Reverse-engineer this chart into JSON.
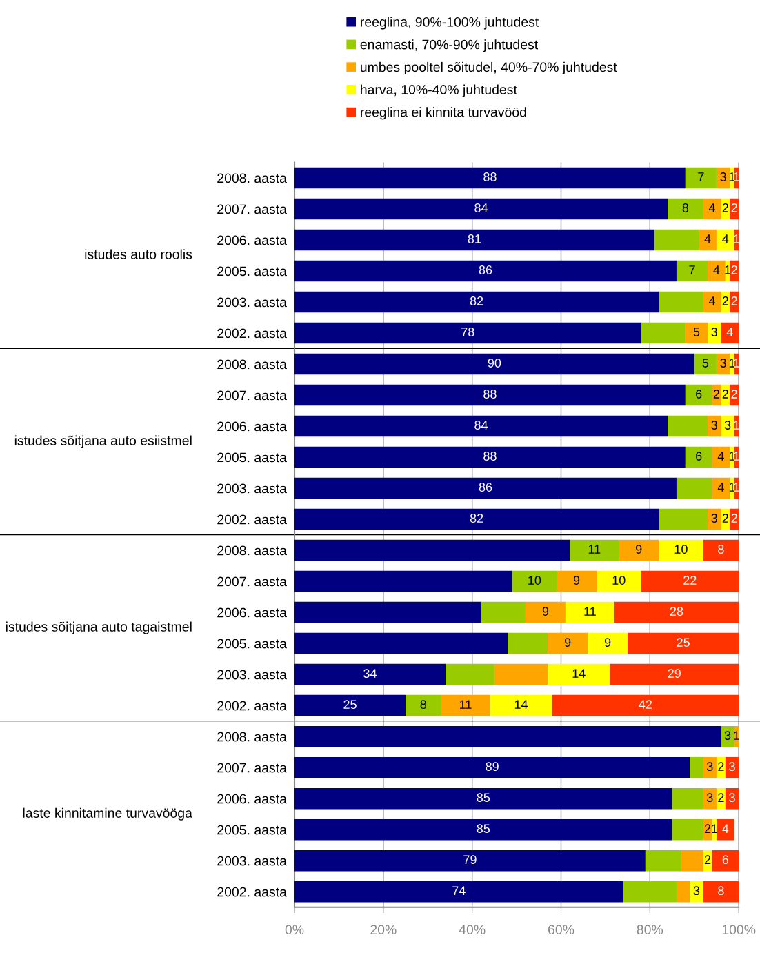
{
  "chart_data": {
    "type": "bar",
    "orientation": "horizontal",
    "stacked": true,
    "legend": "top",
    "grid": "x",
    "categories": [
      "2008. aasta",
      "2007. aasta",
      "2006. aasta",
      "2005. aasta",
      "2003. aasta",
      "2002. aasta",
      "2008. aasta",
      "2007. aasta",
      "2006. aasta",
      "2005. aasta",
      "2003. aasta",
      "2002. aasta",
      "2008. aasta",
      "2007. aasta",
      "2006. aasta",
      "2005. aasta",
      "2003. aasta",
      "2002. aasta",
      "2008. aasta",
      "2007. aasta",
      "2006. aasta",
      "2005. aasta",
      "2003. aasta",
      "2002. aasta"
    ],
    "annotations": [
      "istudes auto roolis",
      "istudes sõitjana auto esiistmel",
      "istudes sõitjana auto tagaistmel",
      "laste kinnitamine turvavööga"
    ],
    "xlim": [
      0,
      100
    ],
    "xticks": [
      {
        "value": 0,
        "label": "0%"
      },
      {
        "value": 20,
        "label": "20%"
      },
      {
        "value": 40,
        "label": "40%"
      },
      {
        "value": 60,
        "label": "60%"
      },
      {
        "value": 80,
        "label": "80%"
      },
      {
        "value": 100,
        "label": "100%"
      }
    ],
    "series": [
      {
        "name": "reeglina, 90%-100% juhtudest",
        "color": "#000080",
        "values": [
          88,
          84,
          81,
          86,
          82,
          78,
          90,
          88,
          84,
          88,
          86,
          82,
          62,
          49,
          42,
          48,
          34,
          25,
          96,
          89,
          85,
          85,
          79,
          74
        ],
        "value_labels": [
          "88",
          "84",
          "81",
          "86",
          "82",
          "78",
          "90",
          "88",
          "84",
          "88",
          "86",
          "82",
          null,
          null,
          null,
          null,
          "34",
          "25",
          null,
          "89",
          "85",
          "85",
          "79",
          "74"
        ]
      },
      {
        "name": "enamasti, 70%-90% juhtudest",
        "color": "#99cc00",
        "values": [
          7,
          8,
          10,
          7,
          10,
          10,
          5,
          6,
          9,
          6,
          8,
          11,
          11,
          10,
          10,
          9,
          11,
          8,
          3,
          3,
          7,
          7,
          8,
          12
        ],
        "value_labels": [
          "7",
          "8",
          null,
          "7",
          null,
          null,
          "5",
          "6",
          null,
          "6",
          null,
          null,
          "11",
          "10",
          null,
          null,
          null,
          "8",
          "3",
          null,
          null,
          null,
          null,
          null
        ]
      },
      {
        "name": "umbes pooltel sõitudel, 40%-70% juhtudest",
        "color": "#ffa500",
        "values": [
          3,
          4,
          4,
          4,
          4,
          5,
          3,
          2,
          3,
          4,
          4,
          3,
          9,
          9,
          9,
          9,
          12,
          11,
          1,
          3,
          3,
          2,
          5,
          3
        ],
        "value_labels": [
          "3",
          "4",
          "4",
          "4",
          "4",
          "5",
          "3",
          "2",
          "3",
          "4",
          "4",
          "3",
          "9",
          "9",
          "9",
          "9",
          null,
          "11",
          "1",
          "3",
          "3",
          "2",
          null,
          null
        ]
      },
      {
        "name": "harva, 10%-40% juhtudest",
        "color": "#ffff00",
        "values": [
          1,
          2,
          4,
          1,
          2,
          3,
          1,
          2,
          3,
          1,
          1,
          2,
          10,
          10,
          11,
          9,
          14,
          14,
          null,
          2,
          2,
          1,
          2,
          3
        ],
        "value_labels": [
          "1",
          "2",
          "4",
          "1",
          "2",
          "3",
          "1",
          "2",
          "3",
          "1",
          "1",
          "2",
          "10",
          "10",
          "11",
          "9",
          "14",
          "14",
          null,
          "2",
          "2",
          "1",
          "2",
          "3"
        ]
      },
      {
        "name": "reeglina ei kinnita turvavööd",
        "color": "#ff3300",
        "values": [
          1,
          2,
          1,
          2,
          2,
          4,
          1,
          2,
          1,
          1,
          1,
          2,
          8,
          22,
          28,
          25,
          29,
          42,
          null,
          3,
          3,
          4,
          6,
          8
        ],
        "value_labels": [
          "1",
          "2",
          "1",
          "2",
          "2",
          "4",
          "1",
          "2",
          "1",
          "1",
          "1",
          "2",
          "8",
          "22",
          "28",
          "25",
          "29",
          "42",
          null,
          "3",
          "3",
          "4",
          "6",
          "8"
        ]
      }
    ]
  }
}
